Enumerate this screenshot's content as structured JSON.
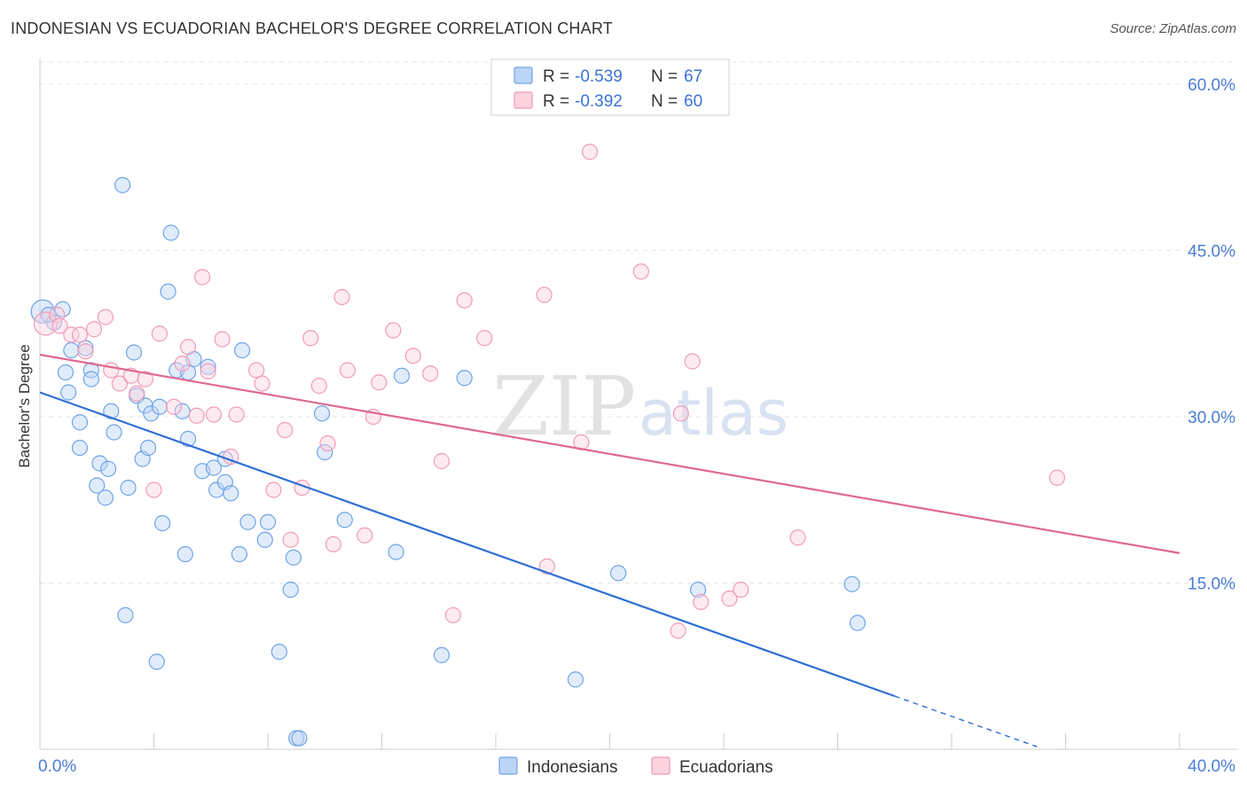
{
  "header": {
    "title": "INDONESIAN VS ECUADORIAN BACHELOR'S DEGREE CORRELATION CHART",
    "source": "Source: ZipAtlas.com"
  },
  "watermark": {
    "zip": "ZIP",
    "atlas": "atlas"
  },
  "legend_top": [
    {
      "r_label": "R = ",
      "r_value": "-0.539",
      "n_label": "N = ",
      "n_value": "67",
      "color": "#6fa3e8"
    },
    {
      "r_label": "R = ",
      "r_value": "-0.392",
      "n_label": "N = ",
      "n_value": "60",
      "color": "#f09ab5"
    }
  ],
  "chart_data": {
    "type": "scatter",
    "title": "INDONESIAN VS ECUADORIAN BACHELOR'S DEGREE CORRELATION CHART",
    "xlabel": "",
    "ylabel": "Bachelor's Degree",
    "xlim": [
      0,
      40
    ],
    "ylim": [
      0,
      62
    ],
    "x_tick_labels": [
      "0.0%",
      "40.0%"
    ],
    "y_ticks": [
      15,
      30,
      45,
      60
    ],
    "y_tick_labels": [
      "15.0%",
      "30.0%",
      "45.0%",
      "60.0%"
    ],
    "grid": true,
    "legend_position": "top-center",
    "series": [
      {
        "name": "Indonesians",
        "color": "#6fa3e8",
        "line_color": "#2f6fd6",
        "trend": {
          "x0": 0,
          "y0": 32.2,
          "x1": 30,
          "y1": 4.8,
          "dash_to_x": 35
        },
        "points": [
          [
            0.1,
            39.5
          ],
          [
            0.5,
            38.5
          ],
          [
            0.8,
            39.7
          ],
          [
            0.9,
            34.0
          ],
          [
            1.0,
            32.2
          ],
          [
            1.1,
            36.0
          ],
          [
            1.4,
            29.5
          ],
          [
            1.4,
            27.2
          ],
          [
            1.6,
            36.2
          ],
          [
            1.8,
            34.2
          ],
          [
            1.8,
            33.4
          ],
          [
            2.0,
            23.8
          ],
          [
            2.1,
            25.8
          ],
          [
            2.3,
            22.7
          ],
          [
            2.4,
            25.3
          ],
          [
            2.5,
            30.5
          ],
          [
            2.6,
            28.6
          ],
          [
            2.9,
            50.9
          ],
          [
            3.0,
            12.1
          ],
          [
            3.1,
            23.6
          ],
          [
            3.3,
            35.8
          ],
          [
            3.4,
            31.9
          ],
          [
            3.6,
            26.2
          ],
          [
            3.7,
            31.0
          ],
          [
            3.8,
            27.2
          ],
          [
            3.9,
            30.3
          ],
          [
            4.1,
            7.9
          ],
          [
            4.2,
            30.9
          ],
          [
            4.3,
            20.4
          ],
          [
            4.5,
            41.3
          ],
          [
            4.6,
            46.6
          ],
          [
            4.8,
            34.2
          ],
          [
            5.0,
            30.5
          ],
          [
            5.1,
            17.6
          ],
          [
            5.2,
            28.0
          ],
          [
            5.4,
            35.2
          ],
          [
            5.7,
            25.1
          ],
          [
            5.9,
            34.5
          ],
          [
            6.1,
            25.4
          ],
          [
            6.2,
            23.4
          ],
          [
            6.5,
            24.1
          ],
          [
            6.5,
            26.2
          ],
          [
            6.7,
            23.1
          ],
          [
            7.0,
            17.6
          ],
          [
            7.1,
            36.0
          ],
          [
            7.3,
            20.5
          ],
          [
            7.9,
            18.9
          ],
          [
            8.0,
            20.5
          ],
          [
            8.4,
            8.8
          ],
          [
            8.8,
            14.4
          ],
          [
            8.9,
            17.3
          ],
          [
            9.0,
            1.0
          ],
          [
            9.1,
            1.0
          ],
          [
            9.9,
            30.3
          ],
          [
            10.0,
            26.8
          ],
          [
            10.7,
            20.7
          ],
          [
            12.5,
            17.8
          ],
          [
            12.7,
            33.7
          ],
          [
            14.1,
            8.5
          ],
          [
            14.9,
            33.5
          ],
          [
            18.8,
            6.3
          ],
          [
            20.3,
            15.9
          ],
          [
            23.1,
            14.4
          ],
          [
            28.5,
            14.9
          ],
          [
            28.7,
            11.4
          ],
          [
            0.3,
            39.2
          ],
          [
            5.2,
            34.0
          ]
        ]
      },
      {
        "name": "Ecuadorians",
        "color": "#f09ab5",
        "line_color": "#e0688f",
        "trend": {
          "x0": 0,
          "y0": 35.6,
          "x1": 40,
          "y1": 17.7
        },
        "points": [
          [
            0.2,
            38.4
          ],
          [
            0.6,
            39.2
          ],
          [
            0.7,
            38.2
          ],
          [
            1.1,
            37.4
          ],
          [
            1.4,
            37.4
          ],
          [
            1.6,
            35.9
          ],
          [
            1.9,
            37.9
          ],
          [
            2.3,
            39.0
          ],
          [
            2.5,
            34.2
          ],
          [
            2.8,
            33.0
          ],
          [
            3.2,
            33.7
          ],
          [
            3.4,
            32.1
          ],
          [
            3.7,
            33.4
          ],
          [
            4.0,
            23.4
          ],
          [
            4.2,
            37.5
          ],
          [
            4.7,
            30.9
          ],
          [
            5.0,
            34.8
          ],
          [
            5.2,
            36.3
          ],
          [
            5.5,
            30.1
          ],
          [
            5.7,
            42.6
          ],
          [
            5.9,
            34.1
          ],
          [
            6.1,
            30.2
          ],
          [
            6.4,
            37.0
          ],
          [
            6.7,
            26.4
          ],
          [
            6.9,
            30.2
          ],
          [
            7.6,
            34.2
          ],
          [
            7.8,
            33.0
          ],
          [
            8.2,
            23.4
          ],
          [
            8.6,
            28.8
          ],
          [
            8.8,
            18.9
          ],
          [
            9.2,
            23.6
          ],
          [
            9.5,
            37.1
          ],
          [
            9.8,
            32.8
          ],
          [
            10.1,
            27.6
          ],
          [
            10.3,
            18.5
          ],
          [
            10.6,
            40.8
          ],
          [
            10.8,
            34.2
          ],
          [
            11.4,
            19.3
          ],
          [
            11.7,
            30.0
          ],
          [
            11.9,
            33.1
          ],
          [
            12.4,
            37.8
          ],
          [
            13.1,
            35.5
          ],
          [
            13.7,
            33.9
          ],
          [
            14.1,
            26.0
          ],
          [
            14.5,
            12.1
          ],
          [
            14.9,
            40.5
          ],
          [
            15.6,
            37.1
          ],
          [
            17.7,
            41.0
          ],
          [
            17.8,
            16.5
          ],
          [
            19.0,
            27.7
          ],
          [
            19.3,
            53.9
          ],
          [
            21.1,
            43.1
          ],
          [
            22.4,
            10.7
          ],
          [
            22.5,
            30.3
          ],
          [
            22.9,
            35.0
          ],
          [
            23.2,
            13.3
          ],
          [
            24.2,
            13.6
          ],
          [
            24.6,
            14.4
          ],
          [
            26.6,
            19.1
          ],
          [
            35.7,
            24.5
          ]
        ]
      }
    ]
  },
  "bottom_legend": [
    {
      "label": "Indonesians",
      "color": "#6fa3e8"
    },
    {
      "label": "Ecuadorians",
      "color": "#f09ab5"
    }
  ]
}
